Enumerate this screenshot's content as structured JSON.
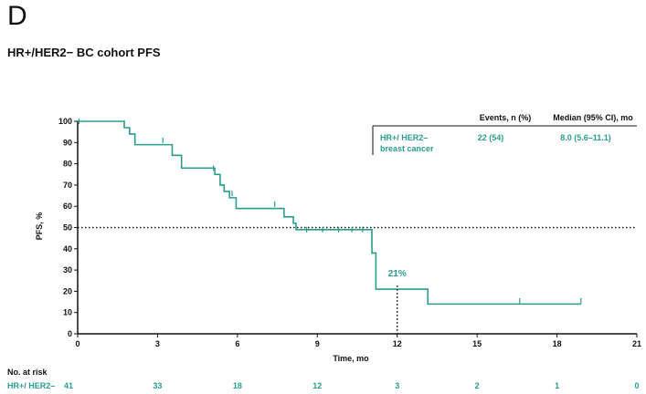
{
  "panel": {
    "letter": "D",
    "title": "HR+/HER2− BC cohort PFS"
  },
  "chart_data": {
    "type": "line",
    "subtype": "kaplan-meier",
    "title": "HR+/HER2− BC cohort PFS",
    "xlabel": "Time, mo",
    "ylabel": "PFS, %",
    "xlim": [
      0,
      21
    ],
    "ylim": [
      0,
      100
    ],
    "xticks": [
      0,
      3,
      6,
      9,
      12,
      15,
      18,
      21
    ],
    "yticks": [
      0,
      10,
      20,
      30,
      40,
      50,
      60,
      70,
      80,
      90,
      100
    ],
    "reference_line_y": 50,
    "annotation": {
      "label": "21%",
      "x": 12,
      "y": 21
    },
    "series": [
      {
        "name": "HR+/ HER2– breast cancer",
        "color": "#2a9d8f",
        "steps": [
          [
            0,
            100
          ],
          [
            1.75,
            97
          ],
          [
            1.95,
            94
          ],
          [
            2.15,
            89
          ],
          [
            3.2,
            89
          ],
          [
            3.55,
            84
          ],
          [
            3.9,
            78
          ],
          [
            4.9,
            78
          ],
          [
            5.15,
            75
          ],
          [
            5.35,
            70
          ],
          [
            5.5,
            67
          ],
          [
            5.7,
            64
          ],
          [
            5.95,
            59
          ],
          [
            7.45,
            59
          ],
          [
            7.75,
            55
          ],
          [
            8.1,
            52
          ],
          [
            8.2,
            49
          ],
          [
            9.6,
            49
          ],
          [
            11.0,
            49
          ],
          [
            11.05,
            38
          ],
          [
            11.2,
            21
          ],
          [
            13.1,
            21
          ],
          [
            13.15,
            14
          ],
          [
            18.9,
            14
          ]
        ],
        "censor_marks": [
          [
            0.05,
            100
          ],
          [
            3.2,
            91
          ],
          [
            5.1,
            78
          ],
          [
            5.8,
            66
          ],
          [
            7.4,
            61
          ],
          [
            8.6,
            49
          ],
          [
            9.2,
            49
          ],
          [
            9.8,
            49
          ],
          [
            10.3,
            49
          ],
          [
            10.7,
            49
          ],
          [
            16.6,
            15.5
          ],
          [
            18.9,
            15.5
          ]
        ]
      }
    ],
    "table": {
      "headers": [
        "Events, n (%)",
        "Median (95% CI), mo"
      ],
      "row_label_line1": "HR+/ HER2–",
      "row_label_line2": "breast cancer",
      "events": "22 (54)",
      "median": "8.0 (5.6–11.1)"
    },
    "risk_table": {
      "title": "No. at risk",
      "row_label": "HR+/ HER2–",
      "times": [
        0,
        3,
        6,
        9,
        12,
        15,
        18,
        21
      ],
      "counts": [
        "41",
        "33",
        "18",
        "12",
        "3",
        "2",
        "1",
        "0"
      ]
    }
  }
}
